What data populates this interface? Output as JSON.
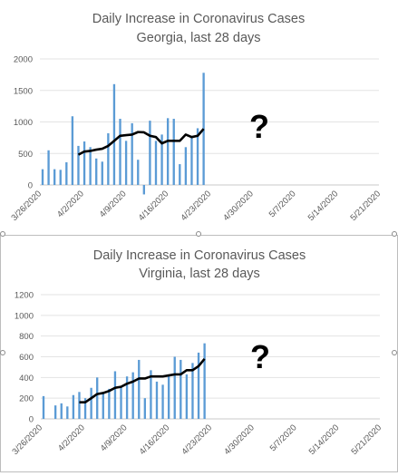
{
  "chart_data": [
    {
      "type": "bar",
      "title": "Daily Increase  in Coronavirus Cases",
      "subtitle": "Georgia, last 28 days",
      "xlabel": "",
      "ylabel": "",
      "ylim": [
        0,
        2000
      ],
      "yticks": [
        "2000",
        "1500",
        "1000",
        "500",
        "0"
      ],
      "yticks_values": [
        2000,
        1500,
        1000,
        500,
        0
      ],
      "grid": true,
      "annotation": "?",
      "x_start": "3/26/2020",
      "x_end": "5/21/2020",
      "x_tick_labels": [
        "3/26/2020",
        "4/2/2020",
        "4/9/2020",
        "4/16/2020",
        "4/23/2020",
        "4/30/2020",
        "5/7/2020",
        "5/14/2020",
        "5/21/2020"
      ],
      "bar_color": "#5b9bd5",
      "line_color": "#000000",
      "bars": [
        250,
        550,
        250,
        240,
        360,
        1090,
        620,
        690,
        600,
        420,
        370,
        820,
        1600,
        1050,
        700,
        980,
        400,
        -150,
        1020,
        700,
        800,
        1060,
        1050,
        330,
        600,
        780,
        900,
        1780
      ],
      "moving_average": [
        null,
        null,
        null,
        null,
        null,
        null,
        480,
        530,
        540,
        560,
        575,
        620,
        700,
        780,
        790,
        800,
        840,
        835,
        780,
        760,
        660,
        700,
        700,
        700,
        800,
        760,
        780,
        890
      ]
    },
    {
      "type": "bar",
      "title": "Daily Increase  in Coronavirus Cases",
      "subtitle": "Virginia, last 28 days",
      "xlabel": "",
      "ylabel": "",
      "ylim": [
        0,
        1200
      ],
      "yticks": [
        "1200",
        "1000",
        "800",
        "600",
        "400",
        "200",
        "0"
      ],
      "yticks_values": [
        1200,
        1000,
        800,
        600,
        400,
        200,
        0
      ],
      "grid": true,
      "annotation": "?",
      "x_start": "3/26/2020",
      "x_end": "5/21/2020",
      "x_tick_labels": [
        "3/26/2020",
        "4/2/2020",
        "4/9/2020",
        "4/16/2020",
        "4/23/2020",
        "4/30/2020",
        "5/7/2020",
        "5/14/2020",
        "5/21/2020"
      ],
      "bar_color": "#5b9bd5",
      "line_color": "#000000",
      "bars": [
        220,
        0,
        130,
        150,
        120,
        230,
        260,
        200,
        300,
        400,
        250,
        290,
        460,
        320,
        410,
        450,
        570,
        200,
        470,
        360,
        330,
        430,
        600,
        570,
        430,
        540,
        640,
        730
      ],
      "moving_average": [
        null,
        null,
        null,
        null,
        null,
        null,
        160,
        160,
        200,
        240,
        250,
        270,
        300,
        310,
        340,
        360,
        390,
        390,
        410,
        410,
        410,
        420,
        430,
        430,
        470,
        470,
        510,
        580
      ]
    }
  ]
}
